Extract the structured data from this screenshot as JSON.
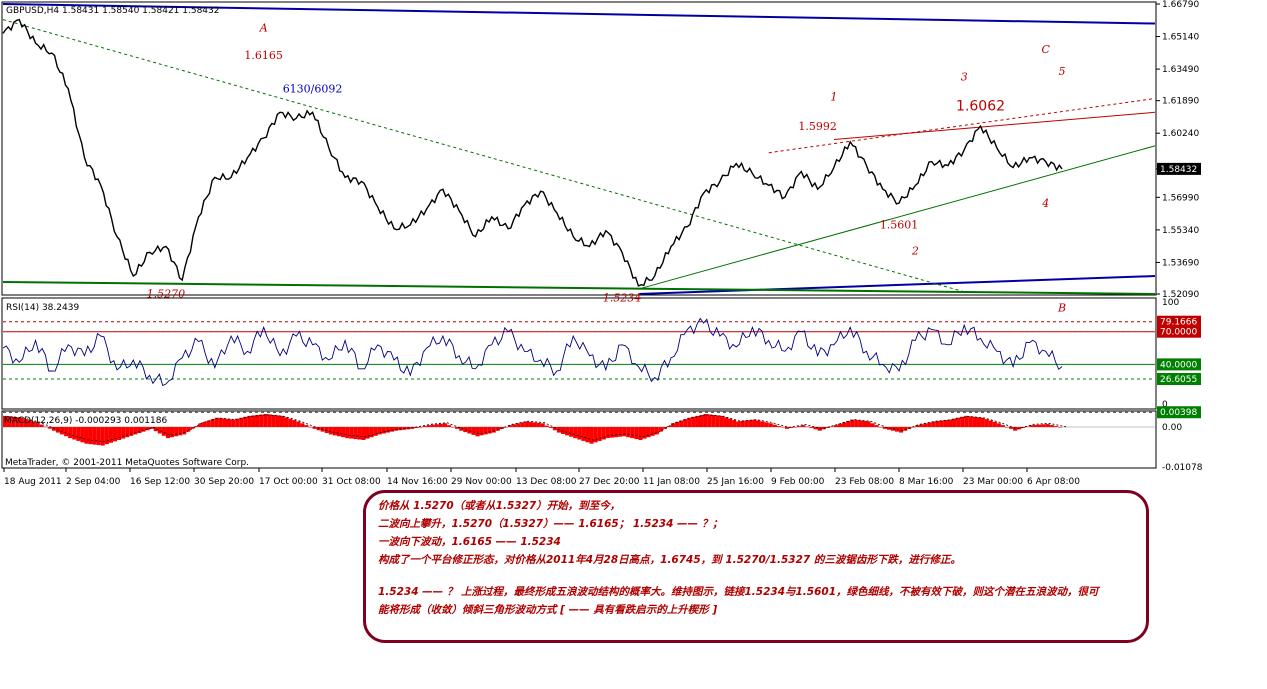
{
  "window": {
    "symbol_header": "GBPUSD,H4  1.58431 1.58540 1.58421 1.58432",
    "copyright": "MetaTrader, © 2001-2011 MetaQuotes Software Corp."
  },
  "colors": {
    "price_line": "#000000",
    "channel_blue": "#0000a0",
    "support_green": "#007000",
    "wedge_red": "#c00000",
    "annotation_red": "#c00000",
    "annotation_blue": "#0000c0",
    "rsi_line": "#000080",
    "macd_hist": "#ff0000",
    "current_price_bg": "#000000",
    "level_green_bg": "#008000",
    "level_red_bg": "#c00000"
  },
  "chart_data": [
    {
      "type": "line",
      "panel": "price",
      "symbol": "GBPUSD",
      "timeframe": "H4",
      "ohlc_header": {
        "open": 1.58431,
        "high": 1.5854,
        "low": 1.58421,
        "close": 1.58432
      },
      "x_ticks": [
        "18 Aug 2011",
        "2 Sep 04:00",
        "16 Sep 12:00",
        "30 Sep 20:00",
        "17 Oct 00:00",
        "31 Oct 08:00",
        "14 Nov 16:00",
        "29 Nov 00:00",
        "13 Dec 08:00",
        "27 Dec 20:00",
        "11 Jan 08:00",
        "25 Jan 16:00",
        "9 Feb 00:00",
        "23 Feb 08:00",
        "8 Mar 16:00",
        "23 Mar 00:00",
        "6 Apr 08:00"
      ],
      "y_ticks": [
        "1.66790",
        "1.65140",
        "1.63490",
        "1.61890",
        "1.60240",
        "1.58432",
        "1.56990",
        "1.55340",
        "1.53690",
        "1.52090"
      ],
      "ylim": [
        1.5209,
        1.6679
      ],
      "current_price": "1.58432",
      "x_points": [
        "18 Aug 2011",
        "22 Aug 2011",
        "26 Aug 2011",
        "2 Sep 04:00",
        "7 Sep 2011",
        "12 Sep 2011",
        "16 Sep 12:00",
        "20 Sep 2011",
        "23 Sep 2011",
        "26 Sep 2011",
        "30 Sep 20:00",
        "4 Oct 2011",
        "8 Oct 2011",
        "12 Oct 2011",
        "17 Oct 00:00",
        "21 Oct 2011",
        "25 Oct 2011",
        "28 Oct 2011",
        "31 Oct 08:00",
        "3 Nov 2011",
        "6 Nov 2011",
        "10 Nov 2011",
        "14 Nov 16:00",
        "18 Nov 2011",
        "22 Nov 2011",
        "26 Nov 2011",
        "29 Nov 00:00",
        "2 Dec 2011",
        "6 Dec 2011",
        "9 Dec 2011",
        "13 Dec 08:00",
        "17 Dec 2011",
        "20 Dec 2011",
        "23 Dec 2011",
        "27 Dec 20:00",
        "30 Dec 2011",
        "2 Jan 2012",
        "5 Jan 2012",
        "8 Jan 2012",
        "11 Jan 08:00",
        "14 Jan 2012",
        "18 Jan 2012",
        "22 Jan 2012",
        "25 Jan 16:00",
        "29 Jan 2012",
        "2 Feb 2012",
        "6 Feb 2012",
        "9 Feb 00:00",
        "12 Feb 2012",
        "16 Feb 2012",
        "19 Feb 2012",
        "23 Feb 08:00",
        "26 Feb 2012",
        "1 Mar 2012",
        "4 Mar 2012",
        "8 Mar 16:00",
        "12 Mar 2012",
        "16 Mar 2012",
        "19 Mar 2012",
        "23 Mar 00:00",
        "26 Mar 2012",
        "30 Mar 2012",
        "3 Apr 2012",
        "6 Apr 08:00",
        "9 Apr 2012",
        "11 Apr 2012"
      ],
      "series": [
        {
          "values": [
            1.653,
            1.66,
            1.648,
            1.643,
            1.625,
            1.59,
            1.576,
            1.55,
            1.53,
            1.542,
            1.545,
            1.528,
            1.56,
            1.58,
            1.58,
            1.59,
            1.6,
            1.613,
            1.61,
            1.613,
            1.595,
            1.58,
            1.578,
            1.565,
            1.554,
            1.556,
            1.564,
            1.574,
            1.563,
            1.55,
            1.56,
            1.554,
            1.566,
            1.573,
            1.562,
            1.55,
            1.545,
            1.553,
            1.542,
            1.525,
            1.53,
            1.545,
            1.555,
            1.572,
            1.578,
            1.587,
            1.582,
            1.576,
            1.57,
            1.583,
            1.574,
            1.585,
            1.598,
            1.586,
            1.574,
            1.567,
            1.576,
            1.588,
            1.586,
            1.594,
            1.606,
            1.595,
            1.585,
            1.59,
            1.588,
            1.5843
          ]
        }
      ],
      "trendlines": [
        {
          "name": "upper channel",
          "from": {
            "x": "18 Aug 2011",
            "y": 1.6679
          },
          "to": {
            "x": "11 Apr 2012",
            "y": 1.658
          }
        },
        {
          "name": "lower channel",
          "from": {
            "x": "11 Jan 08:00",
            "y": 1.5209
          },
          "to": {
            "x": "11 Apr 2012",
            "y": 1.53
          }
        },
        {
          "name": "downtrend",
          "from": {
            "x": "18 Aug 2011",
            "y": 1.66
          },
          "to": {
            "x": "23 Mar 00:00",
            "y": 1.522
          }
        },
        {
          "name": "wedge support",
          "from": {
            "x": "11 Jan 08:00",
            "y": 1.5234
          },
          "to": {
            "x": "11 Apr 2012",
            "y": 1.596
          }
        },
        {
          "name": "wedge resistance",
          "from": {
            "x": "23 Feb 08:00",
            "y": 1.5992
          },
          "to": {
            "x": "11 Apr 2012",
            "y": 1.613
          }
        },
        {
          "name": "wedge resistance dotted",
          "from": {
            "x": "9 Feb 00:00",
            "y": 1.5925
          },
          "to": {
            "x": "11 Apr 2012",
            "y": 1.62
          }
        },
        {
          "name": "base",
          "from": {
            "x": "18 Aug 2011",
            "y": 1.527
          },
          "to": {
            "x": "11 Apr 2012",
            "y": 1.5209
          }
        }
      ],
      "annotations": [
        {
          "text": "A",
          "x": "25 Oct 2011",
          "y": 1.654,
          "color": "red",
          "italic": true
        },
        {
          "text": "1.6165",
          "x": "25 Oct 2011",
          "y": 1.64,
          "color": "red"
        },
        {
          "text": "6130/6092",
          "x": "3 Nov 2011",
          "y": 1.623,
          "color": "blue"
        },
        {
          "text": "1.5270",
          "x": "30 Sep 20:00",
          "y": 1.519,
          "color": "red",
          "italic": true
        },
        {
          "text": "1.5234",
          "x": "8 Jan 2012",
          "y": 1.517,
          "color": "red",
          "italic": true
        },
        {
          "text": "B",
          "x": "12 Jan 2012",
          "y": 1.512,
          "color": "red",
          "italic": true
        },
        {
          "text": "1",
          "x": "23 Feb 08:00",
          "y": 1.619,
          "color": "red",
          "italic": true
        },
        {
          "text": "1.5992",
          "x": "19 Feb 2012",
          "y": 1.604,
          "color": "red"
        },
        {
          "text": "1.5601",
          "x": "8 Mar 16:00",
          "y": 1.554,
          "color": "red"
        },
        {
          "text": "2",
          "x": "12 Mar 2012",
          "y": 1.541,
          "color": "red",
          "italic": true
        },
        {
          "text": "3",
          "x": "23 Mar 00:00",
          "y": 1.629,
          "color": "red",
          "italic": true
        },
        {
          "text": "1.6062",
          "x": "26 Mar 2012",
          "y": 1.614,
          "color": "red",
          "big": true
        },
        {
          "text": "C",
          "x": "9 Apr 2012",
          "y": 1.643,
          "color": "red",
          "italic": true
        },
        {
          "text": "5",
          "x": "11 Apr 2012",
          "y": 1.632,
          "color": "red",
          "italic": true
        },
        {
          "text": "4",
          "x": "9 Apr 2012",
          "y": 1.565,
          "color": "red",
          "italic": true
        }
      ]
    },
    {
      "type": "line",
      "panel": "rsi",
      "label": "RSI(14) 38.2439",
      "ylim": [
        0,
        100
      ],
      "y_ticks": [
        "100",
        "0"
      ],
      "levels": [
        "79.1666",
        "70.0000",
        "40.0000",
        "26.6055"
      ],
      "level_values": [
        79.1666,
        70.0,
        40.0,
        26.6055
      ],
      "current_value": 38.2439,
      "series": [
        {
          "values": [
            55,
            42,
            62,
            34,
            58,
            48,
            66,
            35,
            44,
            30,
            22,
            46,
            61,
            37,
            66,
            52,
            74,
            48,
            66,
            58,
            44,
            62,
            36,
            58,
            44,
            30,
            55,
            66,
            48,
            36,
            58,
            70,
            52,
            44,
            34,
            66,
            48,
            35,
            58,
            38,
            28,
            46,
            72,
            78,
            66,
            56,
            74,
            62,
            52,
            70,
            48,
            58,
            74,
            52,
            40,
            34,
            62,
            72,
            58,
            76,
            64,
            52,
            38,
            60,
            52,
            38
          ]
        }
      ]
    },
    {
      "type": "bar",
      "panel": "macd",
      "label": "MACD(12,26,9) -0.000293 0.001186",
      "y_ticks": [
        "0.00398",
        "0.00",
        "-0.01078"
      ],
      "ylim": [
        -0.01078,
        0.00398
      ],
      "series": [
        {
          "values": [
            0.003,
            0.0025,
            0.0012,
            -0.001,
            -0.003,
            -0.0045,
            -0.005,
            -0.0035,
            -0.002,
            -0.0005,
            -0.003,
            -0.002,
            0.001,
            0.0025,
            0.002,
            0.003,
            0.0035,
            0.003,
            0.0015,
            -0.0005,
            -0.002,
            -0.003,
            -0.0035,
            -0.002,
            -0.001,
            -0.0005,
            0.0005,
            0.001,
            -0.001,
            -0.0025,
            -0.0015,
            0.0005,
            0.0015,
            0.001,
            -0.0015,
            -0.003,
            -0.0045,
            -0.003,
            -0.0025,
            -0.0035,
            -0.002,
            0.001,
            0.0025,
            0.0035,
            0.003,
            0.0015,
            0.002,
            0.001,
            -0.0005,
            0.0005,
            -0.001,
            0.0005,
            0.002,
            0.0015,
            -0.0005,
            -0.0015,
            0.0005,
            0.0015,
            0.002,
            0.003,
            0.0025,
            0.001,
            -0.001,
            0.0005,
            0.0008,
            -0.0003
          ]
        }
      ]
    }
  ],
  "notes": {
    "lines": [
      "价格从 1.5270（或者从1.5327）开始，到至今，",
      "二波向上攀升，1.5270（1.5327）—— 1.6165； 1.5234 —— ？；",
      "一波向下波动，1.6165 —— 1.5234",
      "构成了一个平台修正形态，对价格从2011年4月28日高点，1.6745，到 1.5270/1.5327 的三波锯齿形下跌，进行修正。",
      "1.5234 —— ？ 上涨过程，最终形成五浪波动结构的概率大。维持图示，链接1.5234与1.5601，绿色细线，不被有效下破，则这个潜在五浪波动，很可",
      "能将形成（收敛）倾斜三角形波动方式 [ —— 具有看跌启示的上升楔形 ]"
    ]
  }
}
